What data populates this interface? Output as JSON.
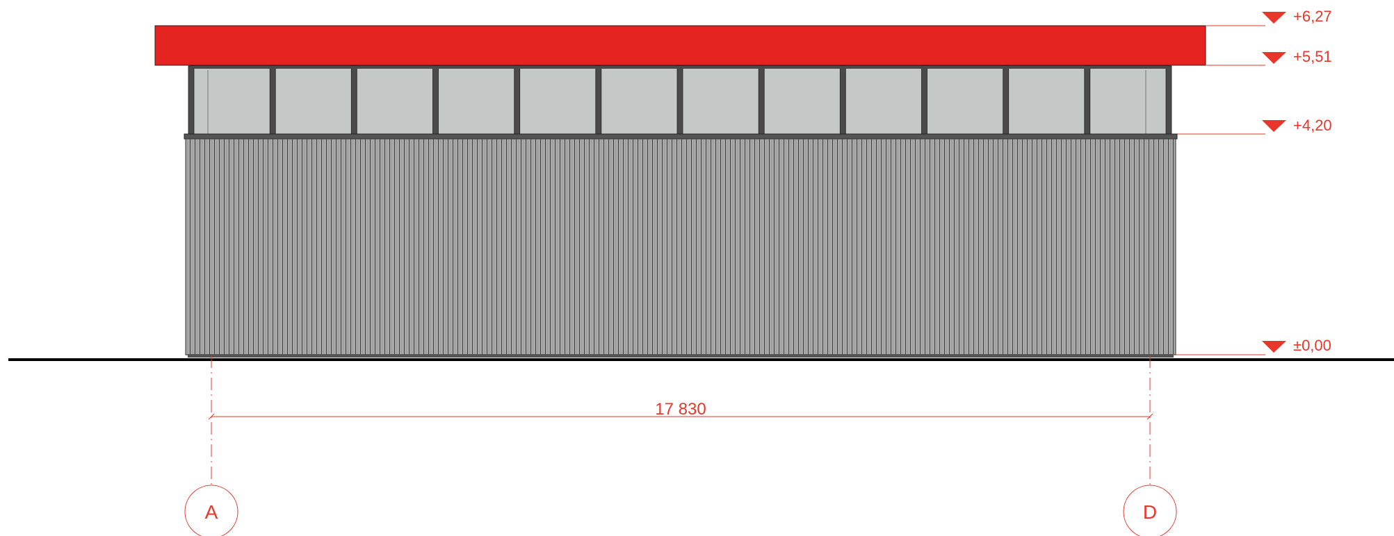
{
  "colors": {
    "roof": "#e52320",
    "annotation": "#e8362b",
    "glazing": "#c4c9c7",
    "frame": "#4a4a4a",
    "cladding": "#a9a9a9",
    "ground": "#000000"
  },
  "elevation_levels": [
    {
      "label": "+6,27"
    },
    {
      "label": "+5,51"
    },
    {
      "label": "+4,20"
    },
    {
      "label": "±0,00"
    }
  ],
  "dimension": {
    "label": "17 830"
  },
  "grid_axes": [
    {
      "label": "A"
    },
    {
      "label": "D"
    }
  ],
  "glazing_panels": 12
}
